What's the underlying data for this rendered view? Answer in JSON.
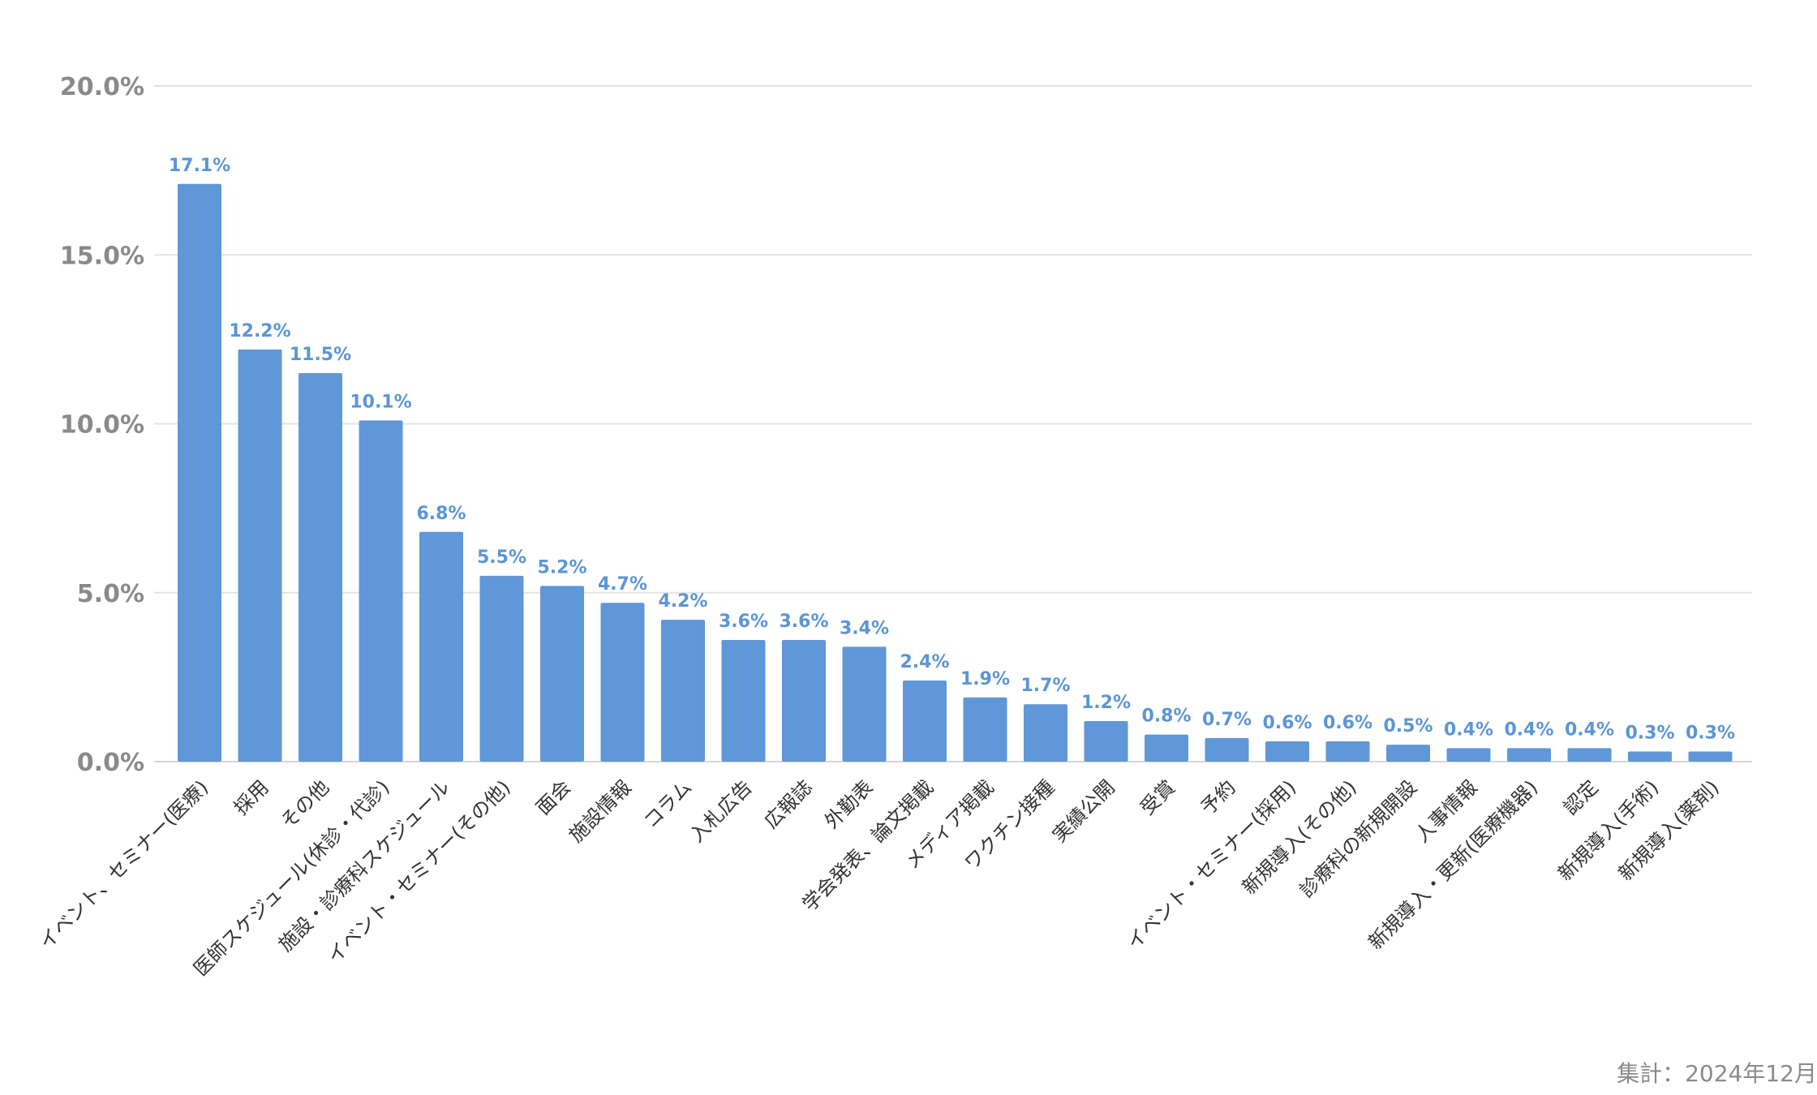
{
  "chart_data": {
    "type": "bar",
    "title": "",
    "xlabel": "",
    "ylabel": "",
    "ylim": [
      0,
      20
    ],
    "yticks": [
      "0.0%",
      "5.0%",
      "10.0%",
      "15.0%",
      "20.0%"
    ],
    "ytick_values": [
      0,
      5,
      10,
      15,
      20
    ],
    "grid": true,
    "legend": "none",
    "bar_color": "#5f97d8",
    "label_color": "#5b95d6",
    "categories": [
      "イベント、セミナー(医療)",
      "採用",
      "その他",
      "医師スケジュール(休診・代診)",
      "施設・診療科スケジュール",
      "イベント・セミナー(その他)",
      "面会",
      "施設情報",
      "コラム",
      "入札広告",
      "広報誌",
      "外勤表",
      "学会発表、論文掲載",
      "メディア掲載",
      "ワクチン接種",
      "実績公開",
      "受賞",
      "予約",
      "イベント・セミナー(採用)",
      "新規導入(その他)",
      "診療科の新規開設",
      "人事情報",
      "新規導入・更新(医療機器)",
      "認定",
      "新規導入(手術)",
      "新規導入(薬剤)"
    ],
    "values": [
      17.1,
      12.2,
      11.5,
      10.1,
      6.8,
      5.5,
      5.2,
      4.7,
      4.2,
      3.6,
      3.6,
      3.4,
      2.4,
      1.9,
      1.7,
      1.2,
      0.8,
      0.7,
      0.6,
      0.6,
      0.5,
      0.4,
      0.4,
      0.4,
      0.3,
      0.3
    ],
    "data_labels": [
      "17.1%",
      "12.2%",
      "11.5%",
      "10.1%",
      "6.8%",
      "5.5%",
      "5.2%",
      "4.7%",
      "4.2%",
      "3.6%",
      "3.6%",
      "3.4%",
      "2.4%",
      "1.9%",
      "1.7%",
      "1.2%",
      "0.8%",
      "0.7%",
      "0.6%",
      "0.6%",
      "0.5%",
      "0.4%",
      "0.4%",
      "0.4%",
      "0.3%",
      "0.3%"
    ]
  },
  "footnote": "集計：2024年12月"
}
